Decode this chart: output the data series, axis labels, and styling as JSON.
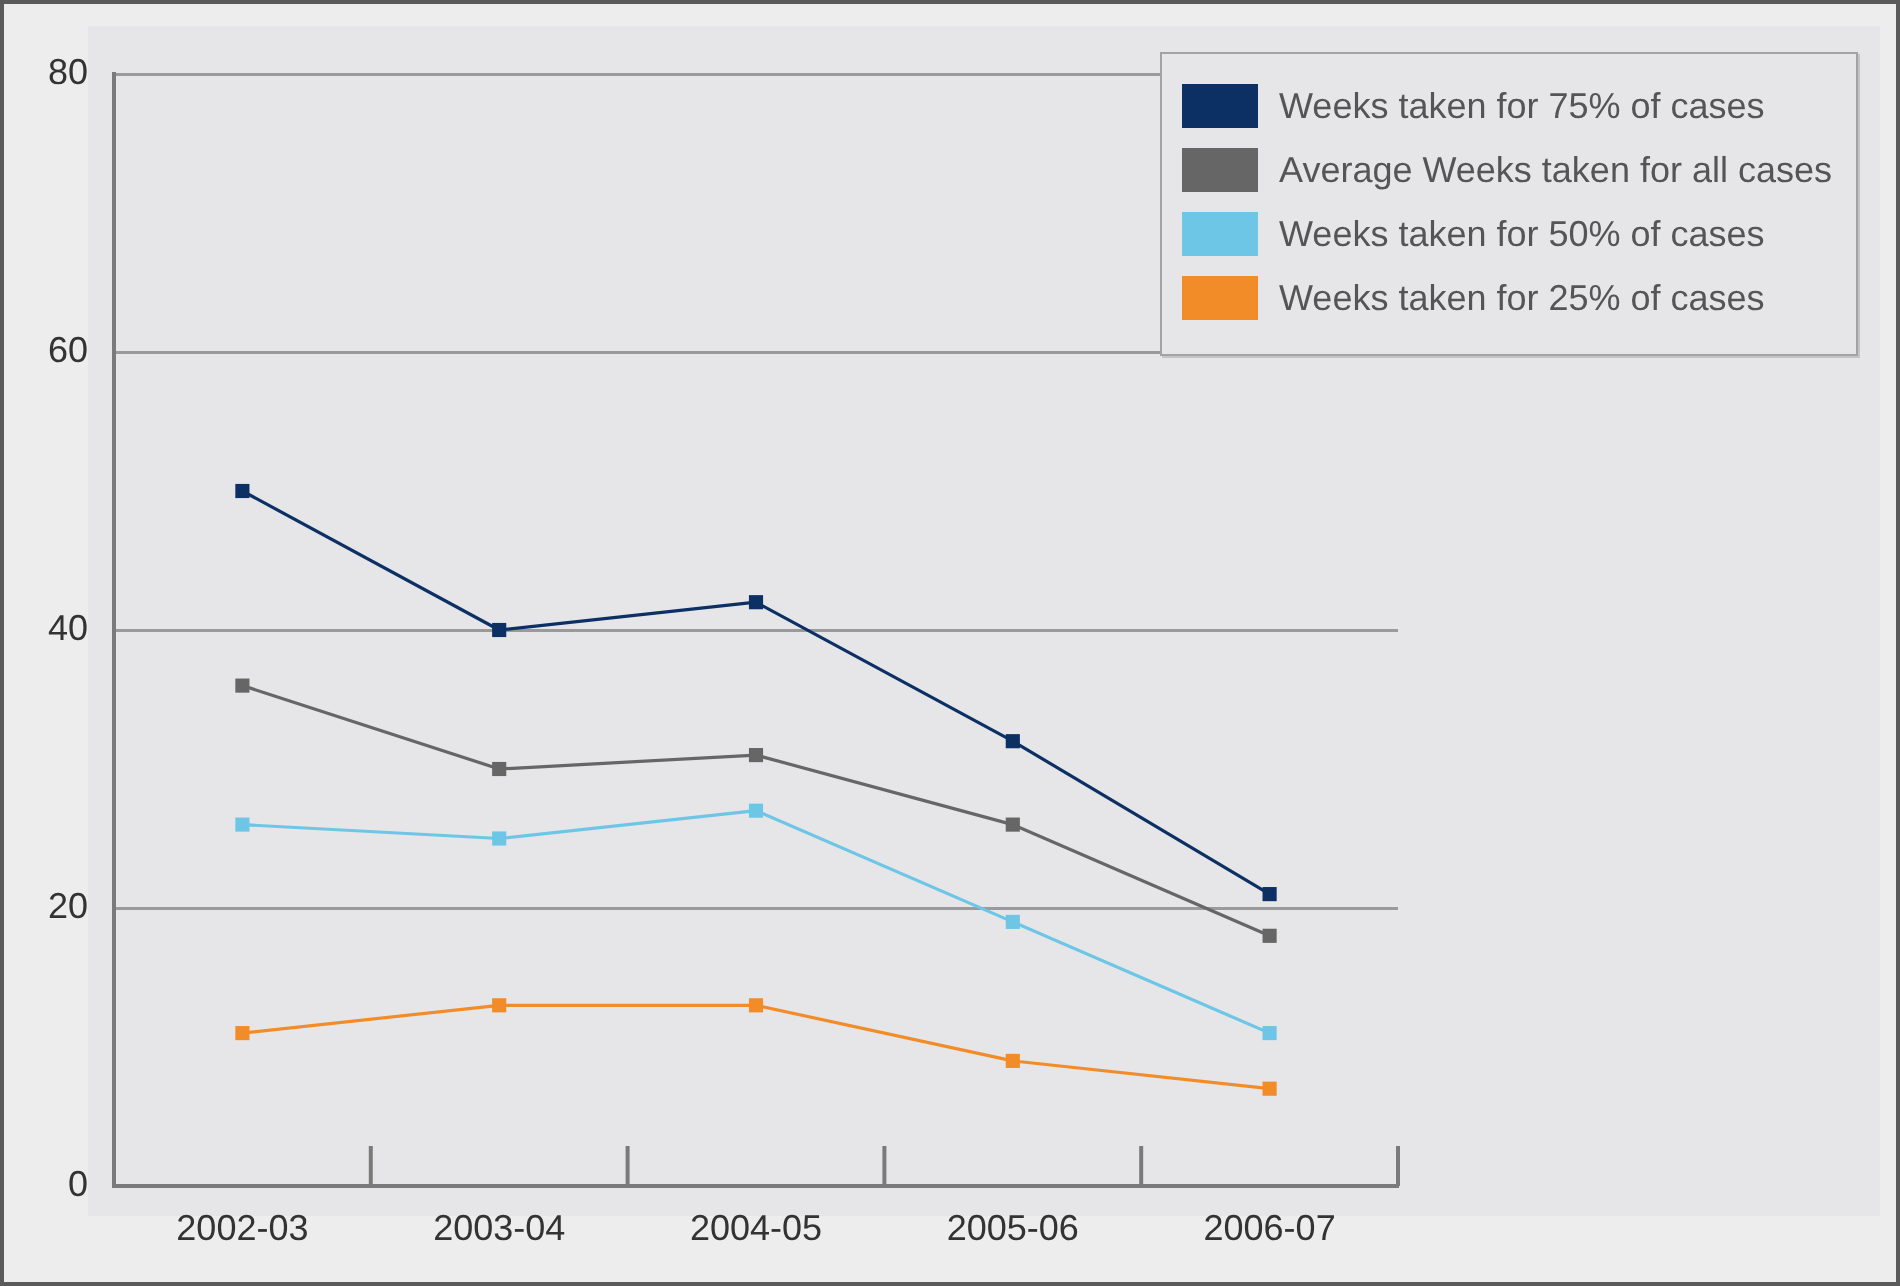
{
  "chart_data": {
    "type": "line",
    "categories": [
      "2002-03",
      "2003-04",
      "2004-05",
      "2005-06",
      "2006-07"
    ],
    "series": [
      {
        "name": "Weeks taken for 75% of cases",
        "color": "#0c2f64",
        "values": [
          50,
          40,
          42,
          32,
          21
        ]
      },
      {
        "name": "Average Weeks taken for all cases",
        "color": "#666666",
        "values": [
          36,
          30,
          31,
          26,
          18
        ]
      },
      {
        "name": "Weeks taken for 50% of cases",
        "color": "#6ec6e6",
        "values": [
          26,
          25,
          27,
          19,
          11
        ]
      },
      {
        "name": "Weeks taken for 25% of cases",
        "color": "#f28c28",
        "values": [
          11,
          13,
          13,
          9,
          7
        ]
      }
    ],
    "ylim": [
      0,
      80
    ],
    "yticks": [
      0,
      20,
      40,
      60,
      80
    ],
    "grid": "y",
    "legend": "top right",
    "marker": "square",
    "line_style": "solid"
  }
}
